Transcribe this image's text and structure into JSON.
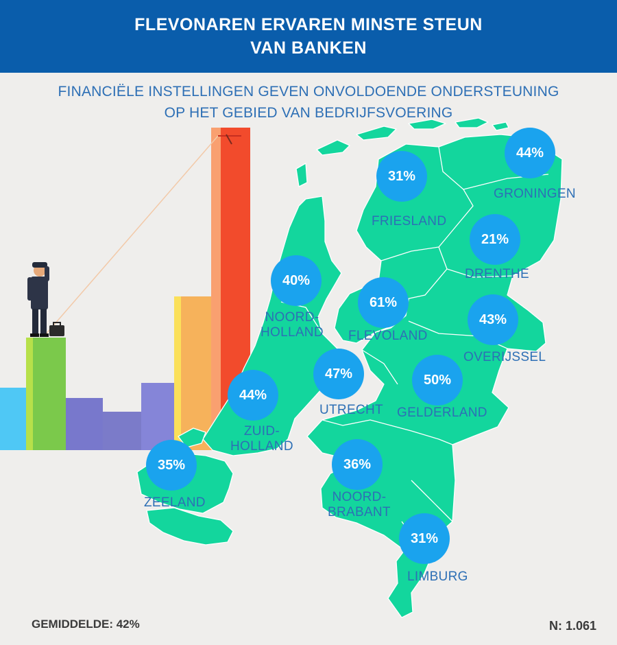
{
  "header": {
    "title_line1": "FLEVONAREN ERVAREN MINSTE STEUN",
    "title_line2": "VAN BANKEN"
  },
  "subtitle": {
    "line1": "FINANCIËLE INSTELLINGEN GEVEN ONVOLDOENDE ONDERSTEUNING",
    "line2": "OP HET GEBIED VAN BEDRIJFSVOERING"
  },
  "colors": {
    "header_bg": "#0a5dab",
    "map_fill": "#13d69d",
    "bubble": "#1aa3ee",
    "label_text": "#2d6fb5"
  },
  "provinces": [
    {
      "id": "groningen",
      "value": "44%",
      "label_lines": [
        "GRONINGEN"
      ]
    },
    {
      "id": "friesland",
      "value": "31%",
      "label_lines": [
        "FRIESLAND"
      ]
    },
    {
      "id": "drenthe",
      "value": "21%",
      "label_lines": [
        "DRENTHE"
      ]
    },
    {
      "id": "noord-holland",
      "value": "40%",
      "label_lines": [
        "NOORD-",
        "HOLLAND"
      ]
    },
    {
      "id": "flevoland",
      "value": "61%",
      "label_lines": [
        "FLEVOLAND"
      ]
    },
    {
      "id": "overijssel",
      "value": "43%",
      "label_lines": [
        "OVERIJSSEL"
      ]
    },
    {
      "id": "utrecht",
      "value": "47%",
      "label_lines": [
        "UTRECHT"
      ]
    },
    {
      "id": "gelderland",
      "value": "50%",
      "label_lines": [
        "GELDERLAND"
      ]
    },
    {
      "id": "zuid-holland",
      "value": "44%",
      "label_lines": [
        "ZUID-",
        "HOLLAND"
      ]
    },
    {
      "id": "zeeland",
      "value": "35%",
      "label_lines": [
        "ZEELAND"
      ]
    },
    {
      "id": "noord-brabant",
      "value": "36%",
      "label_lines": [
        "NOORD-",
        "BRABANT"
      ]
    },
    {
      "id": "limburg",
      "value": "31%",
      "label_lines": [
        "LIMBURG"
      ]
    }
  ],
  "footer": {
    "average": "GEMIDDELDE: 42%",
    "n": "N: 1.061"
  },
  "illustration": {
    "icons": [
      "businessman-figure",
      "briefcase-icon",
      "bar-chart-illustration"
    ]
  }
}
